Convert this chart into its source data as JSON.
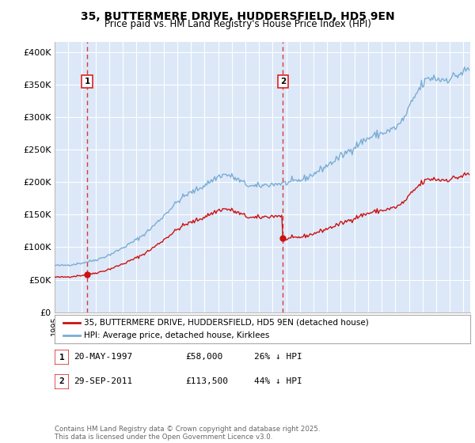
{
  "title": "35, BUTTERMERE DRIVE, HUDDERSFIELD, HD5 9EN",
  "subtitle": "Price paid vs. HM Land Registry's House Price Index (HPI)",
  "ylabel_ticks": [
    "£0",
    "£50K",
    "£100K",
    "£150K",
    "£200K",
    "£250K",
    "£300K",
    "£350K",
    "£400K"
  ],
  "ytick_values": [
    0,
    50000,
    100000,
    150000,
    200000,
    250000,
    300000,
    350000,
    400000
  ],
  "ylim": [
    0,
    415000
  ],
  "xlim_start": 1995.0,
  "xlim_end": 2025.5,
  "background_color": "#dce8f8",
  "plot_bg_color": "#dce8f8",
  "grid_color": "#ffffff",
  "hpi_color": "#7aadd4",
  "price_color": "#cc1111",
  "vline_color": "#dd2222",
  "sale1_year": 1997.38,
  "sale1_price": 58000,
  "sale1_label": "1",
  "sale2_year": 2011.75,
  "sale2_price": 113500,
  "sale2_label": "2",
  "legend_line1": "35, BUTTERMERE DRIVE, HUDDERSFIELD, HD5 9EN (detached house)",
  "legend_line2": "HPI: Average price, detached house, Kirklees",
  "table_row1": [
    "1",
    "20-MAY-1997",
    "£58,000",
    "26% ↓ HPI"
  ],
  "table_row2": [
    "2",
    "29-SEP-2011",
    "£113,500",
    "44% ↓ HPI"
  ],
  "footer": "Contains HM Land Registry data © Crown copyright and database right 2025.\nThis data is licensed under the Open Government Licence v3.0."
}
